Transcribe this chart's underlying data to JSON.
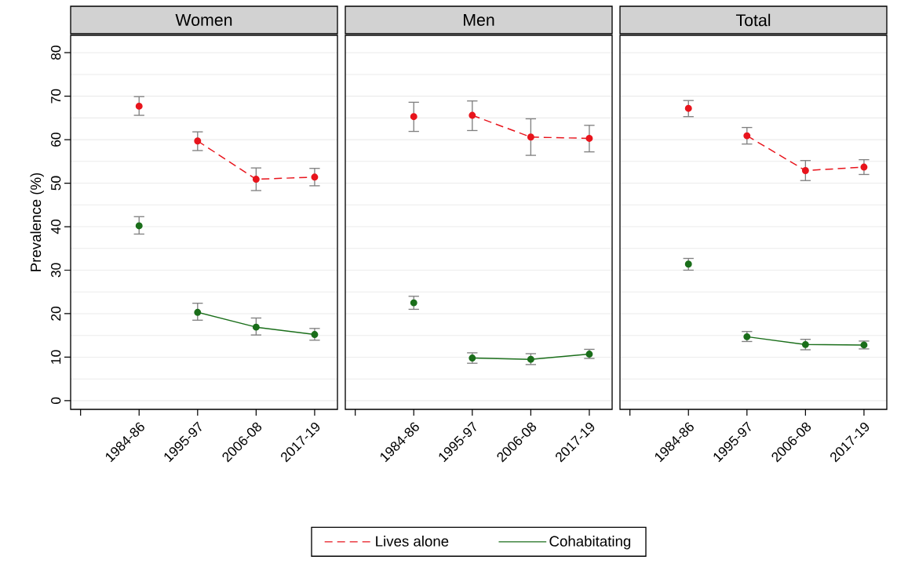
{
  "chart_data": [
    {
      "type": "line",
      "title": "Women",
      "ylabel": "Prevalence (%)",
      "categories": [
        null,
        "1984-86",
        "1995-97",
        "2006-08",
        "2017-19"
      ],
      "ylim": [
        -2,
        84
      ],
      "yticks": [
        0,
        {
          "value": 5,
          "label": null
        },
        10,
        {
          "value": 15,
          "label": null
        },
        20,
        {
          "value": 25,
          "label": null
        },
        30,
        {
          "value": 35,
          "label": null
        },
        40,
        {
          "value": 45,
          "label": null
        },
        50,
        {
          "value": 55,
          "label": null
        },
        60,
        {
          "value": 65,
          "label": null
        },
        70,
        {
          "value": 75,
          "label": null
        },
        80
      ],
      "grid": "y",
      "marker": "circle",
      "series": [
        {
          "color": "#e8141c",
          "line_style": "dashed",
          "values": [
            null,
            null,
            59.7,
            50.9,
            51.4
          ],
          "errors": [
            null,
            null,
            [
              57.5,
              61.8
            ],
            [
              48.3,
              53.5
            ],
            [
              49.4,
              53.4
            ]
          ]
        },
        {
          "color": "#1a6e1a",
          "line_style": "solid",
          "values": [
            null,
            null,
            20.3,
            16.9,
            15.2
          ],
          "errors": [
            null,
            null,
            [
              18.5,
              22.4
            ],
            [
              15.1,
              19.0
            ],
            [
              13.9,
              16.6
            ]
          ]
        },
        {
          "type": "scatter",
          "color": "#e8141c",
          "values": [
            null,
            67.7,
            null,
            null,
            null
          ],
          "errors": [
            null,
            [
              65.6,
              69.9
            ],
            null,
            null,
            null
          ]
        },
        {
          "type": "scatter",
          "color": "#1a6e1a",
          "values": [
            null,
            40.2,
            null,
            null,
            null
          ],
          "errors": [
            null,
            [
              38.3,
              42.3
            ],
            null,
            null,
            null
          ]
        }
      ]
    },
    {
      "type": "line",
      "title": "Men",
      "categories": [
        null,
        "1984-86",
        "1995-97",
        "2006-08",
        "2017-19"
      ],
      "ylim": [
        -2,
        84
      ],
      "yticks": [
        0,
        {
          "value": 5,
          "label": null
        },
        10,
        {
          "value": 15,
          "label": null
        },
        20,
        {
          "value": 25,
          "label": null
        },
        30,
        {
          "value": 35,
          "label": null
        },
        40,
        {
          "value": 45,
          "label": null
        },
        50,
        {
          "value": 55,
          "label": null
        },
        60,
        {
          "value": 65,
          "label": null
        },
        70,
        {
          "value": 75,
          "label": null
        },
        80
      ],
      "grid": "y",
      "marker": "circle",
      "tick_labels": "x",
      "legend": "bottom",
      "series": [
        {
          "name": "Lives alone",
          "color": "#e8141c",
          "line_style": "dashed",
          "values": [
            null,
            null,
            65.6,
            60.6,
            60.3
          ],
          "errors": [
            null,
            null,
            [
              62.1,
              68.9
            ],
            [
              56.4,
              64.8
            ],
            [
              57.2,
              63.3
            ]
          ]
        },
        {
          "name": "Cohabitating",
          "color": "#1a6e1a",
          "line_style": "solid",
          "values": [
            null,
            null,
            9.8,
            9.5,
            10.7
          ],
          "errors": [
            null,
            null,
            [
              8.6,
              11.0
            ],
            [
              8.3,
              10.8
            ],
            [
              9.7,
              11.8
            ]
          ]
        },
        {
          "type": "scatter",
          "color": "#e8141c",
          "values": [
            null,
            65.3,
            null,
            null,
            null
          ],
          "errors": [
            null,
            [
              61.9,
              68.6
            ],
            null,
            null,
            null
          ]
        },
        {
          "type": "scatter",
          "color": "#1a6e1a",
          "values": [
            null,
            22.5,
            null,
            null,
            null
          ],
          "errors": [
            null,
            [
              21.0,
              24.0
            ],
            null,
            null,
            null
          ]
        }
      ]
    },
    {
      "type": "line",
      "title": "Total",
      "categories": [
        null,
        "1984-86",
        "1995-97",
        "2006-08",
        "2017-19"
      ],
      "ylim": [
        -2,
        84
      ],
      "yticks": [
        0,
        {
          "value": 5,
          "label": null
        },
        10,
        {
          "value": 15,
          "label": null
        },
        20,
        {
          "value": 25,
          "label": null
        },
        30,
        {
          "value": 35,
          "label": null
        },
        40,
        {
          "value": 45,
          "label": null
        },
        50,
        {
          "value": 55,
          "label": null
        },
        60,
        {
          "value": 65,
          "label": null
        },
        70,
        {
          "value": 75,
          "label": null
        },
        80
      ],
      "grid": "y",
      "marker": "circle",
      "tick_labels": "x",
      "series": [
        {
          "color": "#e8141c",
          "line_style": "dashed",
          "values": [
            null,
            null,
            60.9,
            52.9,
            53.7
          ],
          "errors": [
            null,
            null,
            [
              59.0,
              62.8
            ],
            [
              50.6,
              55.2
            ],
            [
              52.0,
              55.4
            ]
          ]
        },
        {
          "color": "#1a6e1a",
          "line_style": "solid",
          "values": [
            null,
            null,
            14.7,
            12.9,
            12.8
          ],
          "errors": [
            null,
            null,
            [
              13.6,
              15.9
            ],
            [
              11.7,
              14.1
            ],
            [
              11.9,
              13.7
            ]
          ]
        },
        {
          "type": "scatter",
          "color": "#e8141c",
          "values": [
            null,
            67.2,
            null,
            null,
            null
          ],
          "errors": [
            null,
            [
              65.3,
              69.0
            ],
            null,
            null,
            null
          ]
        },
        {
          "type": "scatter",
          "color": "#1a6e1a",
          "values": [
            null,
            31.4,
            null,
            null,
            null
          ],
          "errors": [
            null,
            [
              30.0,
              32.7
            ],
            null,
            null,
            null
          ]
        }
      ]
    }
  ]
}
